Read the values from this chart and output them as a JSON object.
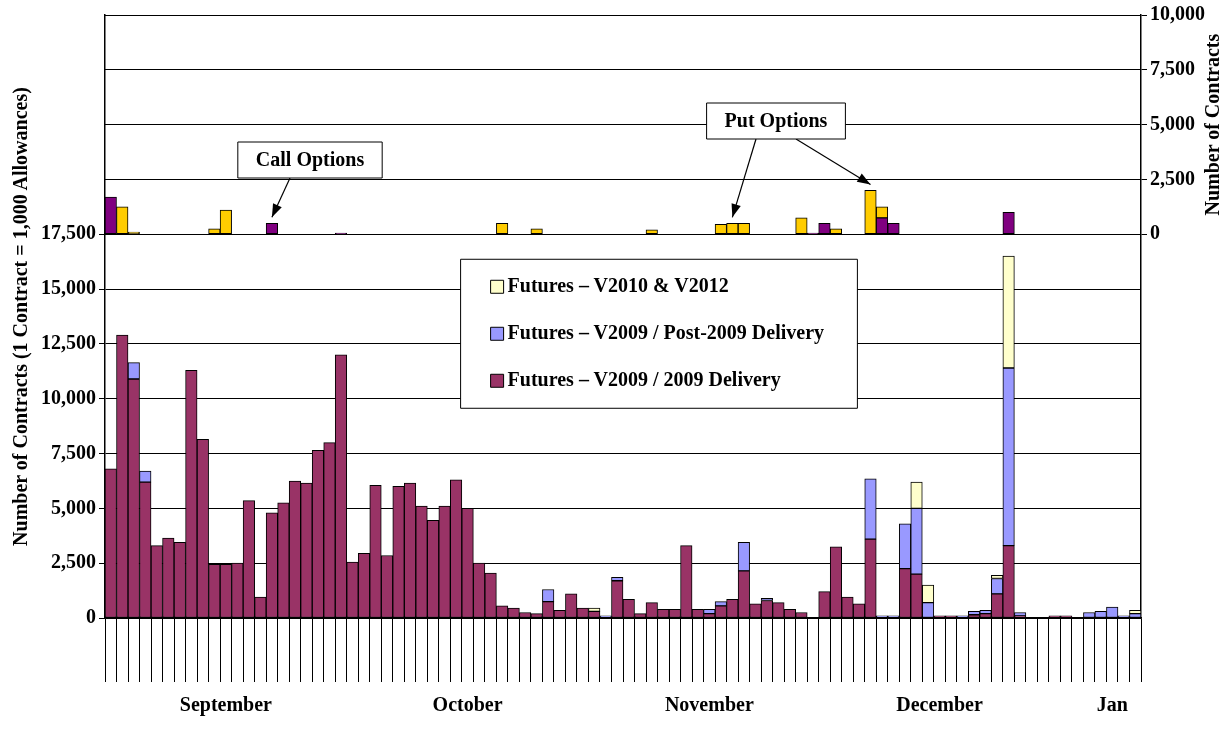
{
  "chart_data": {
    "type": "bar",
    "stacked": true,
    "grid": true,
    "legend": "center",
    "ylabel": "Number of Contracts (1 Contract = 1,000 Allowances)",
    "y2label": "Number of Contracts",
    "categories": [
      null,
      null,
      null,
      null,
      null,
      null,
      null,
      null,
      null,
      null,
      "September",
      null,
      null,
      null,
      null,
      null,
      null,
      null,
      null,
      null,
      null,
      null,
      null,
      null,
      null,
      null,
      null,
      null,
      null,
      null,
      null,
      "October",
      null,
      null,
      null,
      null,
      null,
      null,
      null,
      null,
      null,
      null,
      null,
      null,
      null,
      null,
      null,
      null,
      null,
      null,
      null,
      null,
      "November",
      null,
      null,
      null,
      null,
      null,
      null,
      null,
      null,
      null,
      null,
      null,
      null,
      null,
      null,
      null,
      null,
      null,
      null,
      null,
      "December",
      null,
      null,
      null,
      null,
      null,
      null,
      null,
      null,
      null,
      null,
      null,
      null,
      null,
      null,
      "Jan",
      null,
      null
    ],
    "ylim": [
      0,
      27500
    ],
    "yticks": [
      0,
      {
        "value": 2500,
        "label": "2,500"
      },
      {
        "value": 5000,
        "label": "5,000"
      },
      {
        "value": 7500,
        "label": "7,500"
      },
      {
        "value": 10000,
        "label": "10,000"
      },
      {
        "value": 12500,
        "label": "12,500"
      },
      {
        "value": 15000,
        "label": "15,000"
      },
      {
        "value": 17500,
        "label": "17,500"
      }
    ],
    "y2lim": [
      -17500,
      10000
    ],
    "y2ticks": [
      0,
      {
        "value": 2500,
        "label": "2,500"
      },
      {
        "value": 5000,
        "label": "5,000"
      },
      {
        "value": 7500,
        "label": "7,500"
      },
      {
        "value": 10000,
        "label": "10,000"
      }
    ],
    "series": [
      {
        "name": "Futures – V2009 / 2009 Delivery",
        "color": "#993366",
        "values": [
          6800,
          12900,
          10900,
          6200,
          3300,
          3650,
          3450,
          11300,
          8150,
          2450,
          2450,
          2500,
          5350,
          950,
          4800,
          5250,
          6250,
          6150,
          7650,
          8000,
          12000,
          2550,
          2950,
          6050,
          2850,
          6000,
          6150,
          5100,
          4450,
          5100,
          6300,
          5000,
          2500,
          2050,
          550,
          450,
          250,
          200,
          750,
          350,
          1100,
          450,
          300,
          null,
          1700,
          850,
          200,
          700,
          400,
          400,
          3300,
          400,
          200,
          550,
          850,
          2150,
          650,
          800,
          700,
          400,
          250,
          null,
          1200,
          3250,
          950,
          650,
          3600,
          null,
          null,
          2250,
          2000,
          null,
          100,
          100,
          null,
          150,
          200,
          1100,
          3300,
          100,
          null,
          null,
          100,
          100,
          null,
          null,
          null,
          null,
          null,
          null
        ]
      },
      {
        "name": "Futures – V2009 / Post-2009 Delivery",
        "color": "#9999ff",
        "values": [
          null,
          null,
          750,
          500,
          null,
          null,
          null,
          null,
          null,
          null,
          null,
          null,
          null,
          null,
          null,
          null,
          null,
          null,
          null,
          null,
          null,
          null,
          null,
          null,
          null,
          null,
          null,
          null,
          null,
          null,
          null,
          null,
          null,
          null,
          null,
          null,
          null,
          null,
          550,
          null,
          null,
          null,
          null,
          100,
          150,
          null,
          null,
          null,
          null,
          null,
          null,
          null,
          200,
          200,
          null,
          1300,
          null,
          100,
          null,
          null,
          null,
          null,
          null,
          null,
          null,
          null,
          2750,
          100,
          100,
          2050,
          3000,
          700,
          null,
          null,
          100,
          150,
          150,
          700,
          8100,
          150,
          null,
          null,
          null,
          null,
          null,
          250,
          300,
          500,
          100,
          200
        ]
      },
      {
        "name": "Futures – V2010 & V2012",
        "color": "#ffffcc",
        "values": [
          null,
          null,
          null,
          null,
          null,
          null,
          null,
          null,
          null,
          null,
          null,
          null,
          null,
          null,
          null,
          null,
          null,
          null,
          null,
          null,
          null,
          null,
          null,
          null,
          null,
          null,
          null,
          null,
          null,
          null,
          null,
          null,
          null,
          null,
          null,
          null,
          null,
          null,
          null,
          null,
          null,
          null,
          150,
          null,
          null,
          null,
          null,
          null,
          null,
          null,
          null,
          null,
          null,
          null,
          null,
          null,
          null,
          null,
          null,
          null,
          null,
          null,
          null,
          null,
          null,
          null,
          null,
          null,
          null,
          null,
          1200,
          800,
          null,
          null,
          null,
          null,
          null,
          150,
          5100,
          null,
          null,
          null,
          null,
          null,
          null,
          null,
          null,
          null,
          null,
          150
        ]
      },
      {
        "name": "Call Options",
        "color": "#800080",
        "axis": "y2",
        "values": [
          1700,
          null,
          null,
          null,
          null,
          null,
          null,
          null,
          null,
          null,
          null,
          null,
          null,
          null,
          500,
          null,
          null,
          null,
          null,
          null,
          50,
          null,
          null,
          null,
          null,
          null,
          null,
          null,
          null,
          null,
          null,
          null,
          null,
          null,
          null,
          null,
          null,
          null,
          null,
          null,
          null,
          null,
          null,
          null,
          null,
          null,
          null,
          null,
          null,
          null,
          null,
          null,
          null,
          null,
          null,
          null,
          null,
          null,
          null,
          null,
          null,
          50,
          500,
          null,
          null,
          null,
          null,
          750,
          500,
          null,
          null,
          null,
          null,
          null,
          null,
          null,
          null,
          null,
          1000,
          null,
          null,
          null,
          null,
          null,
          null,
          null,
          null,
          null,
          null,
          null
        ]
      },
      {
        "name": "Put Options",
        "color": "#ffcc00",
        "axis": "y2",
        "values": [
          null,
          1250,
          100,
          null,
          null,
          null,
          null,
          null,
          null,
          250,
          1100,
          null,
          null,
          null,
          null,
          null,
          null,
          null,
          null,
          null,
          null,
          null,
          null,
          null,
          null,
          null,
          null,
          null,
          null,
          null,
          null,
          null,
          null,
          null,
          500,
          null,
          null,
          250,
          null,
          null,
          null,
          null,
          null,
          null,
          null,
          null,
          null,
          200,
          null,
          null,
          null,
          null,
          null,
          450,
          500,
          500,
          null,
          null,
          null,
          null,
          750,
          null,
          null,
          250,
          null,
          null,
          2000,
          500,
          null,
          null,
          null,
          null,
          null,
          null,
          null,
          null,
          null,
          null,
          null,
          null,
          null,
          null,
          null,
          null,
          null,
          null,
          null,
          null,
          null,
          null
        ]
      }
    ]
  }
}
